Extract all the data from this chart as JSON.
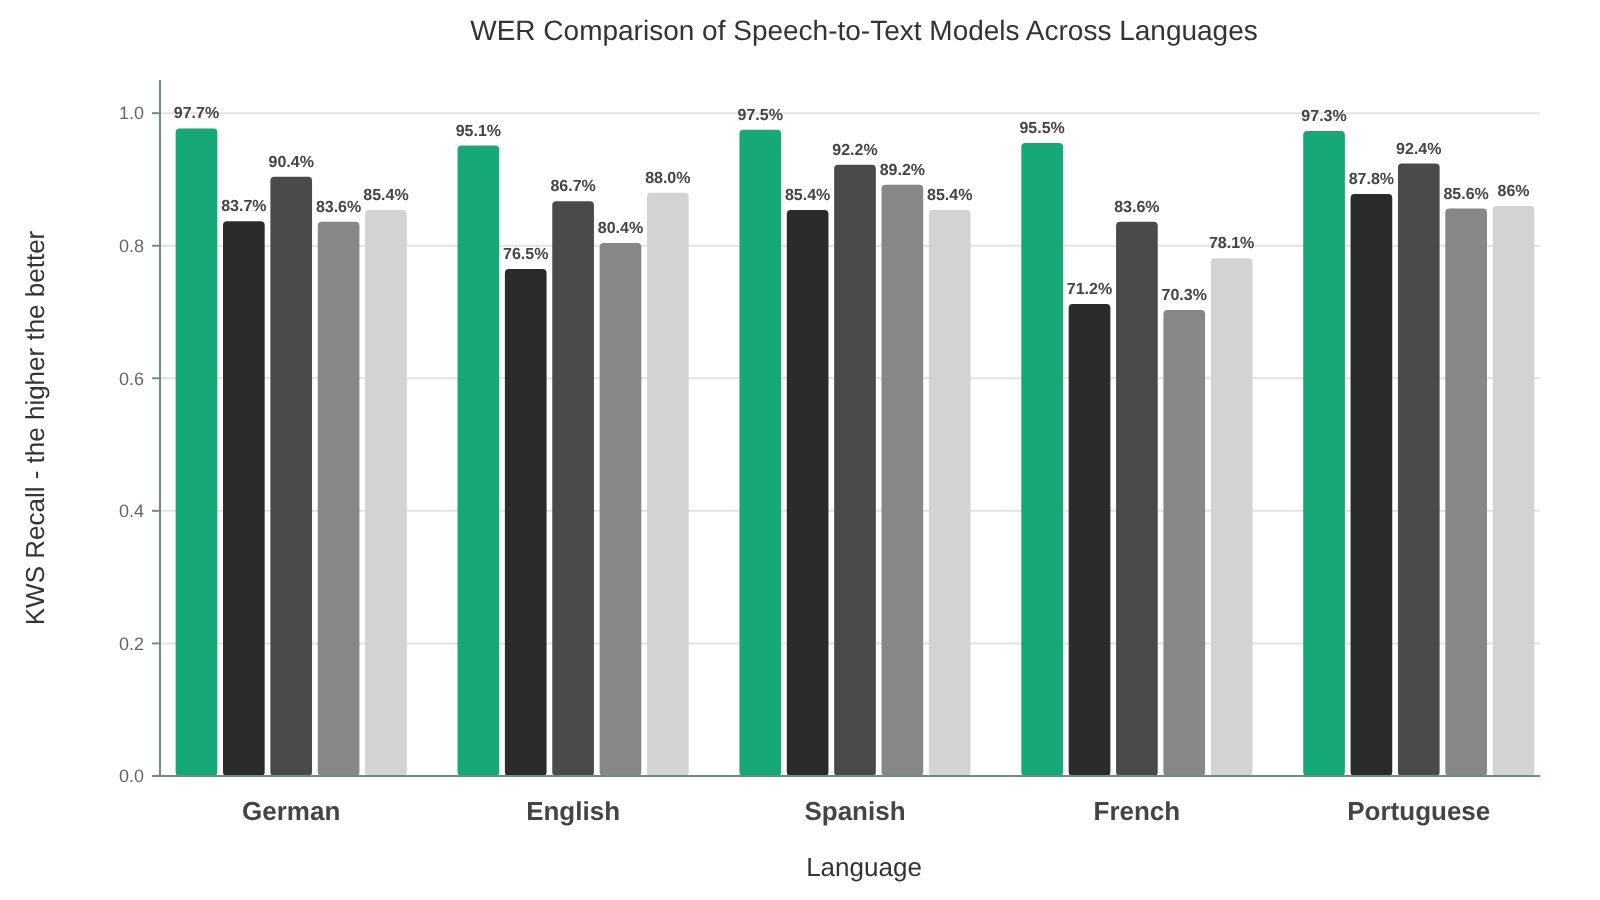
{
  "chart_data": {
    "type": "bar",
    "title": "WER Comparison of Speech-to-Text Models Across Languages",
    "xlabel": "Language",
    "ylabel": "KWS Recall - the higher the better",
    "categories": [
      "German",
      "English",
      "Spanish",
      "French",
      "Portuguese"
    ],
    "series": [
      {
        "color": "#17a878",
        "values": [
          0.977,
          0.951,
          0.975,
          0.955,
          0.973
        ],
        "value_labels": [
          "97.7%",
          "95.1%",
          "97.5%",
          "95.5%",
          "97.3%"
        ]
      },
      {
        "color": "#2b2b2b",
        "values": [
          0.837,
          0.765,
          0.854,
          0.712,
          0.878
        ],
        "value_labels": [
          "83.7%",
          "76.5%",
          "85.4%",
          "71.2%",
          "87.8%"
        ]
      },
      {
        "color": "#4a4a4a",
        "values": [
          0.904,
          0.867,
          0.922,
          0.836,
          0.924
        ],
        "value_labels": [
          "90.4%",
          "86.7%",
          "92.2%",
          "83.6%",
          "92.4%"
        ]
      },
      {
        "color": "#878787",
        "values": [
          0.836,
          0.804,
          0.892,
          0.703,
          0.856
        ],
        "value_labels": [
          "83.6%",
          "80.4%",
          "89.2%",
          "70.3%",
          "85.6%"
        ]
      },
      {
        "color": "#d3d3d3",
        "values": [
          0.854,
          0.88,
          0.854,
          0.781,
          0.86
        ],
        "value_labels": [
          "85.4%",
          "88.0%",
          "85.4%",
          "78.1%",
          "86%"
        ]
      }
    ],
    "ylim": [
      0,
      1.05
    ],
    "yticks": [
      {
        "value": 0,
        "label": "0.0"
      },
      {
        "value": 0.2,
        "label": "0.2"
      },
      {
        "value": 0.4,
        "label": "0.4"
      },
      {
        "value": 0.6,
        "label": "0.6"
      },
      {
        "value": 0.8,
        "label": "0.8"
      },
      {
        "value": 1,
        "label": "1.0"
      }
    ],
    "grid": "y"
  }
}
